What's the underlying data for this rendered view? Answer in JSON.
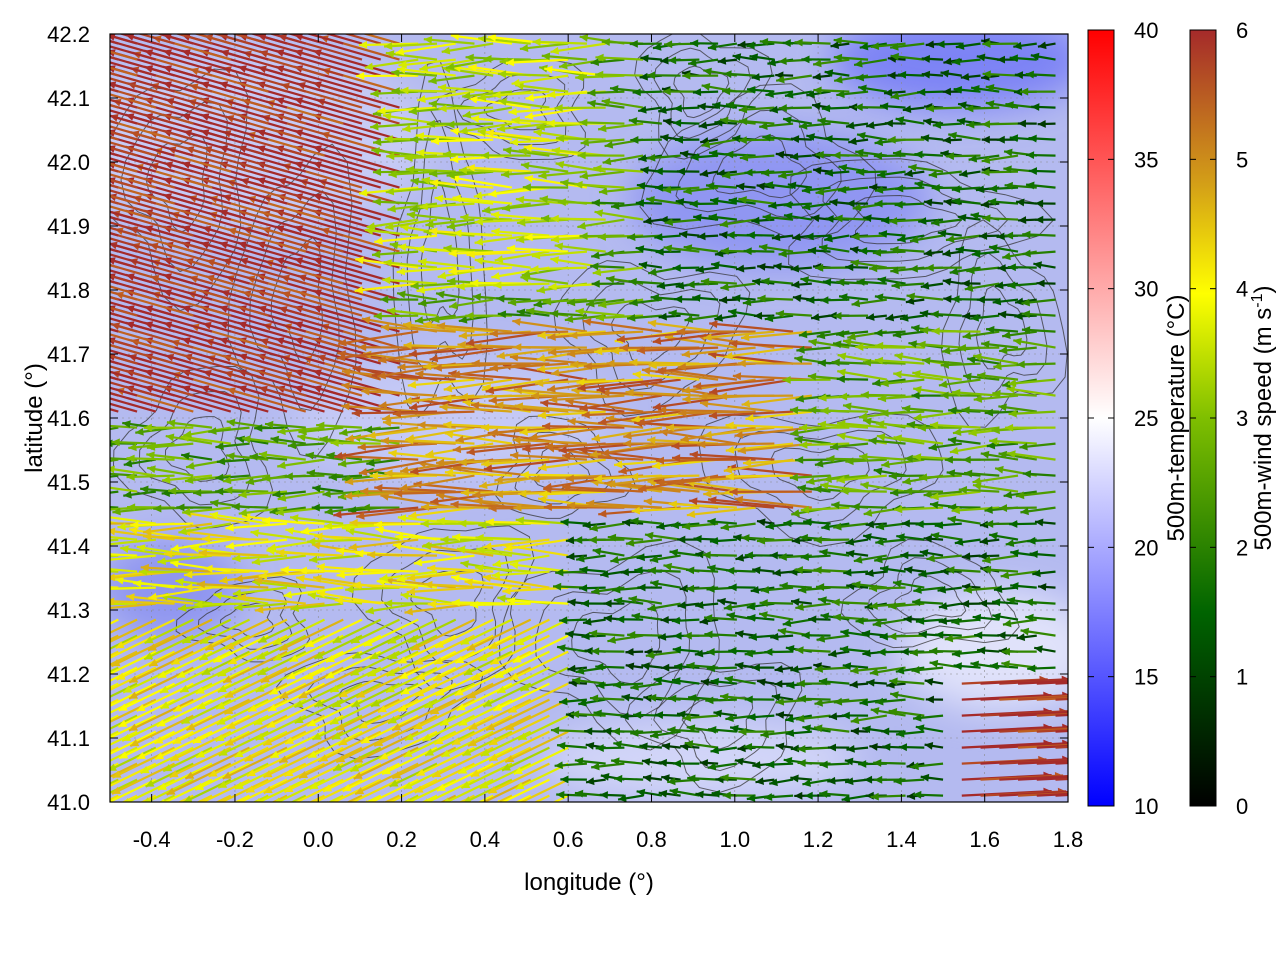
{
  "chart_data": {
    "type": "heatmap",
    "overlay": "vector-field-with-contours",
    "title": "",
    "xlabel": "longitude (°)",
    "ylabel": "latitude (°)",
    "xlim": [
      -0.5,
      1.8
    ],
    "ylim": [
      41.0,
      42.2
    ],
    "x_ticks": [
      -0.4,
      -0.2,
      0.0,
      0.2,
      0.4,
      0.6,
      0.8,
      1.0,
      1.2,
      1.4,
      1.6,
      1.8
    ],
    "x_tick_labels": [
      "-0.4",
      "-0.2",
      "0.0",
      "0.2",
      "0.4",
      "0.6",
      "0.8",
      "1.0",
      "1.2",
      "1.4",
      "1.6",
      "1.8"
    ],
    "y_ticks": [
      41.0,
      41.1,
      41.2,
      41.3,
      41.4,
      41.5,
      41.6,
      41.7,
      41.8,
      41.9,
      42.0,
      42.1,
      42.2
    ],
    "y_tick_labels": [
      "41.0",
      "41.1",
      "41.2",
      "41.3",
      "41.4",
      "41.5",
      "41.6",
      "41.7",
      "41.8",
      "41.9",
      "42.0",
      "42.1",
      "42.2"
    ],
    "grid": true,
    "temperature_colorbar": {
      "label": "500m-temperature (°C)",
      "range": [
        10,
        40
      ],
      "ticks": [
        10,
        15,
        20,
        25,
        30,
        35,
        40
      ],
      "tick_labels": [
        "10",
        "15",
        "20",
        "25",
        "30",
        "35",
        "40"
      ],
      "colors": [
        "#0000ff",
        "#ffffff",
        "#ff0000"
      ]
    },
    "wind_colorbar": {
      "label_main": "500m-wind speed (m s",
      "label_sup": "-1",
      "label_end": ")",
      "range": [
        0,
        6
      ],
      "ticks": [
        0,
        1,
        2,
        3,
        4,
        5,
        6
      ],
      "tick_labels": [
        "0",
        "1",
        "2",
        "3",
        "4",
        "5",
        "6"
      ],
      "colors": [
        "#000000",
        "#006400",
        "#7fbf00",
        "#ffff00",
        "#d4a017",
        "#c06020",
        "#a52a2a"
      ]
    },
    "wind_field": {
      "dominant_direction": "westward",
      "regions": [
        {
          "lon": [
            -0.5,
            0.2
          ],
          "lat": [
            41.6,
            42.2
          ],
          "speed": 6
        },
        {
          "lon": [
            0.2,
            0.7
          ],
          "lat": [
            41.8,
            42.2
          ],
          "speed": 3.5
        },
        {
          "lon": [
            0.2,
            1.2
          ],
          "lat": [
            41.45,
            41.75
          ],
          "speed": 5
        },
        {
          "lon": [
            0.8,
            1.8
          ],
          "lat": [
            41.75,
            42.2
          ],
          "speed": 1.5
        },
        {
          "lon": [
            0.6,
            1.8
          ],
          "lat": [
            41.0,
            41.45
          ],
          "speed": 1.5
        },
        {
          "lon": [
            -0.5,
            0.6
          ],
          "lat": [
            41.0,
            41.45
          ],
          "speed": 4
        },
        {
          "lon": [
            1.5,
            1.8
          ],
          "lat": [
            41.0,
            41.2
          ],
          "speed": 6
        }
      ]
    },
    "temperature_field": {
      "typical": 18,
      "min": 14,
      "max": 24
    }
  }
}
